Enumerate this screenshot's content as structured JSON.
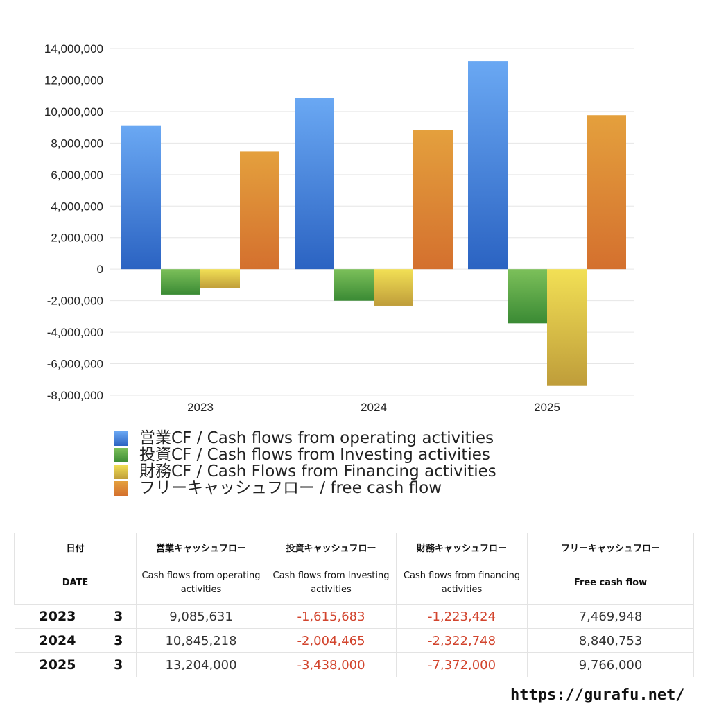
{
  "chart_data": {
    "type": "bar",
    "categories": [
      "2023",
      "2024",
      "2025"
    ],
    "ylim": [
      -8000000,
      14000000
    ],
    "yticks": [
      14000000,
      12000000,
      10000000,
      8000000,
      6000000,
      4000000,
      2000000,
      0,
      -2000000,
      -4000000,
      -6000000,
      -8000000
    ],
    "ytick_labels": [
      "14,000,000",
      "12,000,000",
      "10,000,000",
      "8,000,000",
      "6,000,000",
      "4,000,000",
      "2,000,000",
      "0",
      "-2,000,000",
      "-4,000,000",
      "-6,000,000",
      "-8,000,000"
    ],
    "grid": true,
    "legend_position": "bottom",
    "series": [
      {
        "name": "営業CF / Cash flows from operating activities",
        "values": [
          9085631,
          10845218,
          13204000
        ],
        "color_top": "#6aa8f3",
        "color_bottom": "#2b63c2"
      },
      {
        "name": "投資CF / Cash flows from Investing activities",
        "values": [
          -1615683,
          -2004465,
          -3438000
        ],
        "color_top": "#7cc05a",
        "color_bottom": "#3a8a34"
      },
      {
        "name": "財務CF / Cash Flows from Financing activities",
        "values": [
          -1223424,
          -2322748,
          -7372000
        ],
        "color_top": "#f2e055",
        "color_bottom": "#bf9d3a"
      },
      {
        "name": "フリーキャッシュフロー / free cash flow",
        "values": [
          7469948,
          8840753,
          9766000
        ],
        "color_top": "#e4a03d",
        "color_bottom": "#d4702e"
      }
    ]
  },
  "table": {
    "header_jp": [
      "日付",
      "営業キャッシュフロー",
      "投資キャッシュフロー",
      "財務キャッシュフロー",
      "フリーキャッシュフロー"
    ],
    "header_en": [
      "DATE",
      "Cash flows from operating activities",
      "Cash flows from Investing activities",
      "Cash flows from financing activities",
      "Free cash flow"
    ],
    "rows": [
      {
        "year": "2023",
        "month": "3",
        "operating": "9,085,631",
        "investing": "-1,615,683",
        "financing": "-1,223,424",
        "free": "7,469,948"
      },
      {
        "year": "2024",
        "month": "3",
        "operating": "10,845,218",
        "investing": "-2,004,465",
        "financing": "-2,322,748",
        "free": "8,840,753"
      },
      {
        "year": "2025",
        "month": "3",
        "operating": "13,204,000",
        "investing": "-3,438,000",
        "financing": "-7,372,000",
        "free": "9,766,000"
      }
    ]
  },
  "footer": {
    "url": "https://gurafu.net/"
  }
}
